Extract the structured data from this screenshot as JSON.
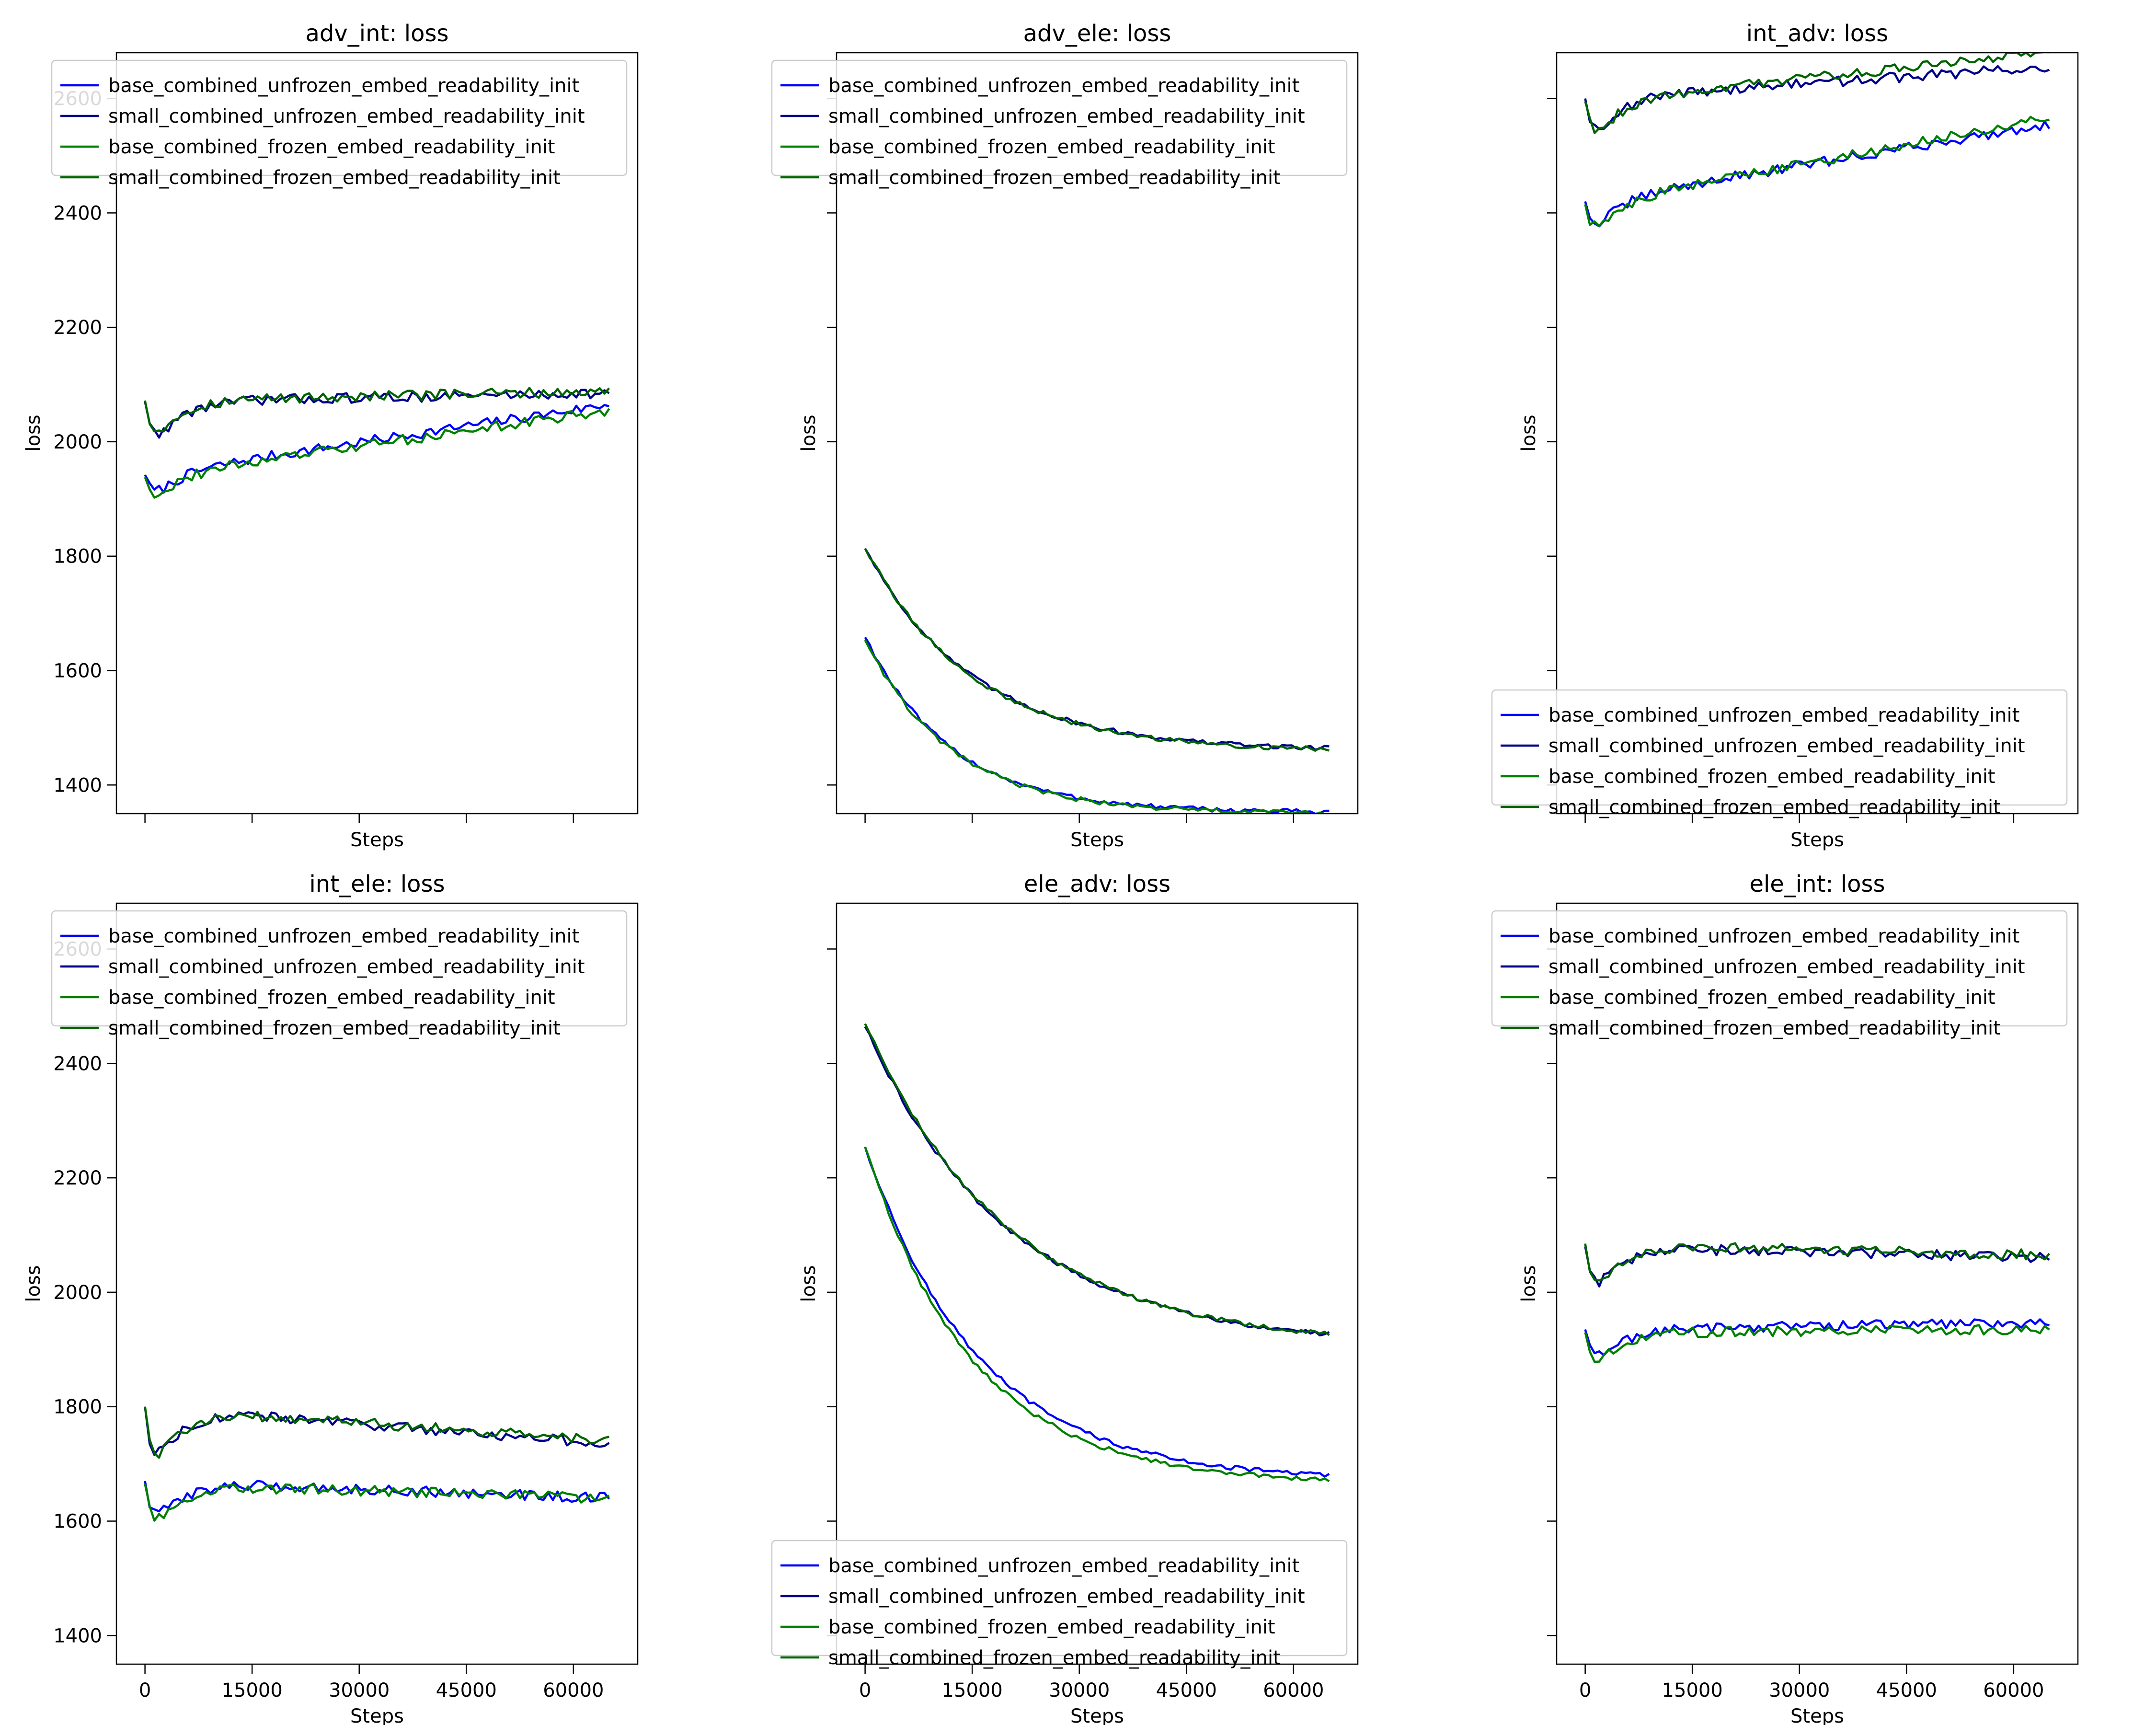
{
  "figure": {
    "layout": "2 rows x 3 columns",
    "sharex": true,
    "sharey": true
  },
  "series_styles": [
    {
      "name": "base_combined_unfrozen_embed_readability_init",
      "color": "#0000ff"
    },
    {
      "name": "small_combined_unfrozen_embed_readability_init",
      "color": "#00008b"
    },
    {
      "name": "base_combined_frozen_embed_readability_init",
      "color": "#008000"
    },
    {
      "name": "small_combined_frozen_embed_readability_init",
      "color": "#006400"
    }
  ],
  "chart_data": [
    {
      "type": "line",
      "title": "adv_int: loss",
      "xlabel": "Steps",
      "ylabel": "loss",
      "xlim": [
        -4000,
        69000
      ],
      "ylim": [
        1350,
        2680
      ],
      "xticks": [
        0,
        15000,
        30000,
        45000,
        60000
      ],
      "yticks": [
        1400,
        1600,
        1800,
        2000,
        2200,
        2400,
        2600
      ],
      "show_xticklabels": false,
      "show_yticklabels": true,
      "legend": "upper-left",
      "series": [
        {
          "name": "base_combined_unfrozen_embed_readability_init",
          "start": 1942,
          "end": 2065,
          "dip": 30
        },
        {
          "name": "small_combined_unfrozen_embed_readability_init",
          "start": 2070,
          "end": 2085,
          "dip": 55
        },
        {
          "name": "base_combined_frozen_embed_readability_init",
          "start": 1938,
          "end": 2055,
          "dip": 30
        },
        {
          "name": "small_combined_frozen_embed_readability_init",
          "start": 2072,
          "end": 2088,
          "dip": 50
        }
      ]
    },
    {
      "type": "line",
      "title": "adv_ele: loss",
      "xlabel": "Steps",
      "ylabel": "loss",
      "xlim": [
        -4000,
        69000
      ],
      "ylim": [
        1350,
        2680
      ],
      "xticks": [
        0,
        15000,
        30000,
        45000,
        60000
      ],
      "yticks": [
        1400,
        1600,
        1800,
        2000,
        2200,
        2400,
        2600
      ],
      "show_xticklabels": false,
      "show_yticklabels": false,
      "legend": "upper-left",
      "series": [
        {
          "name": "base_combined_unfrozen_embed_readability_init",
          "start": 1660,
          "end": 1352,
          "decay": 12000
        },
        {
          "name": "small_combined_unfrozen_embed_readability_init",
          "start": 1815,
          "end": 1460,
          "decay": 15000
        },
        {
          "name": "base_combined_frozen_embed_readability_init",
          "start": 1655,
          "end": 1350,
          "decay": 12000
        },
        {
          "name": "small_combined_frozen_embed_readability_init",
          "start": 1815,
          "end": 1458,
          "decay": 15000
        }
      ]
    },
    {
      "type": "line",
      "title": "int_adv: loss",
      "xlabel": "Steps",
      "ylabel": "loss",
      "xlim": [
        -4000,
        69000
      ],
      "ylim": [
        1350,
        2680
      ],
      "xticks": [
        0,
        15000,
        30000,
        45000,
        60000
      ],
      "yticks": [
        1400,
        1600,
        1800,
        2000,
        2200,
        2400,
        2600
      ],
      "show_xticklabels": false,
      "show_yticklabels": false,
      "legend": "lower-left",
      "series": [
        {
          "name": "base_combined_unfrozen_embed_readability_init",
          "start": 2420,
          "end": 2555,
          "dip": 40
        },
        {
          "name": "small_combined_unfrozen_embed_readability_init",
          "start": 2600,
          "end": 2655,
          "dip": 50
        },
        {
          "name": "base_combined_frozen_embed_readability_init",
          "start": 2415,
          "end": 2565,
          "dip": 40
        },
        {
          "name": "small_combined_frozen_embed_readability_init",
          "start": 2595,
          "end": 2680,
          "dip": 50
        }
      ]
    },
    {
      "type": "line",
      "title": "int_ele: loss",
      "xlabel": "Steps",
      "ylabel": "loss",
      "xlim": [
        -4000,
        69000
      ],
      "ylim": [
        1350,
        2680
      ],
      "xticks": [
        0,
        15000,
        30000,
        45000,
        60000
      ],
      "yticks": [
        1400,
        1600,
        1800,
        2000,
        2200,
        2400,
        2600
      ],
      "show_xticklabels": true,
      "show_yticklabels": true,
      "legend": "upper-left",
      "series": [
        {
          "name": "base_combined_unfrozen_embed_readability_init",
          "start": 1670,
          "end": 1640,
          "dip": 55
        },
        {
          "name": "small_combined_unfrozen_embed_readability_init",
          "start": 1800,
          "end": 1735,
          "dip": 75
        },
        {
          "name": "base_combined_frozen_embed_readability_init",
          "start": 1665,
          "end": 1640,
          "dip": 60
        },
        {
          "name": "small_combined_frozen_embed_readability_init",
          "start": 1800,
          "end": 1740,
          "dip": 80
        }
      ]
    },
    {
      "type": "line",
      "title": "ele_adv: loss",
      "xlabel": "Steps",
      "ylabel": "loss",
      "xlim": [
        -4000,
        69000
      ],
      "ylim": [
        1350,
        2680
      ],
      "xticks": [
        0,
        15000,
        30000,
        45000,
        60000
      ],
      "yticks": [
        1400,
        1600,
        1800,
        2000,
        2200,
        2400,
        2600
      ],
      "show_xticklabels": true,
      "show_yticklabels": false,
      "legend": "lower-left",
      "series": [
        {
          "name": "base_combined_unfrozen_embed_readability_init",
          "start": 2255,
          "end": 1670,
          "decay": 16000
        },
        {
          "name": "small_combined_unfrozen_embed_readability_init",
          "start": 2465,
          "end": 1905,
          "decay": 20000
        },
        {
          "name": "base_combined_frozen_embed_readability_init",
          "start": 2255,
          "end": 1665,
          "decay": 15000
        },
        {
          "name": "small_combined_frozen_embed_readability_init",
          "start": 2470,
          "end": 1905,
          "decay": 20000
        }
      ]
    },
    {
      "type": "line",
      "title": "ele_int: loss",
      "xlabel": "Steps",
      "ylabel": "loss",
      "xlim": [
        -4000,
        69000
      ],
      "ylim": [
        1350,
        2680
      ],
      "xticks": [
        0,
        15000,
        30000,
        45000,
        60000
      ],
      "yticks": [
        1400,
        1600,
        1800,
        2000,
        2200,
        2400,
        2600
      ],
      "show_xticklabels": true,
      "show_yticklabels": false,
      "legend": "upper-left",
      "series": [
        {
          "name": "base_combined_unfrozen_embed_readability_init",
          "start": 1935,
          "end": 1948,
          "dip": 45
        },
        {
          "name": "small_combined_unfrozen_embed_readability_init",
          "start": 2080,
          "end": 2060,
          "dip": 60
        },
        {
          "name": "base_combined_frozen_embed_readability_init",
          "start": 1930,
          "end": 1935,
          "dip": 45
        },
        {
          "name": "small_combined_frozen_embed_readability_init",
          "start": 2085,
          "end": 2065,
          "dip": 60
        }
      ]
    }
  ]
}
